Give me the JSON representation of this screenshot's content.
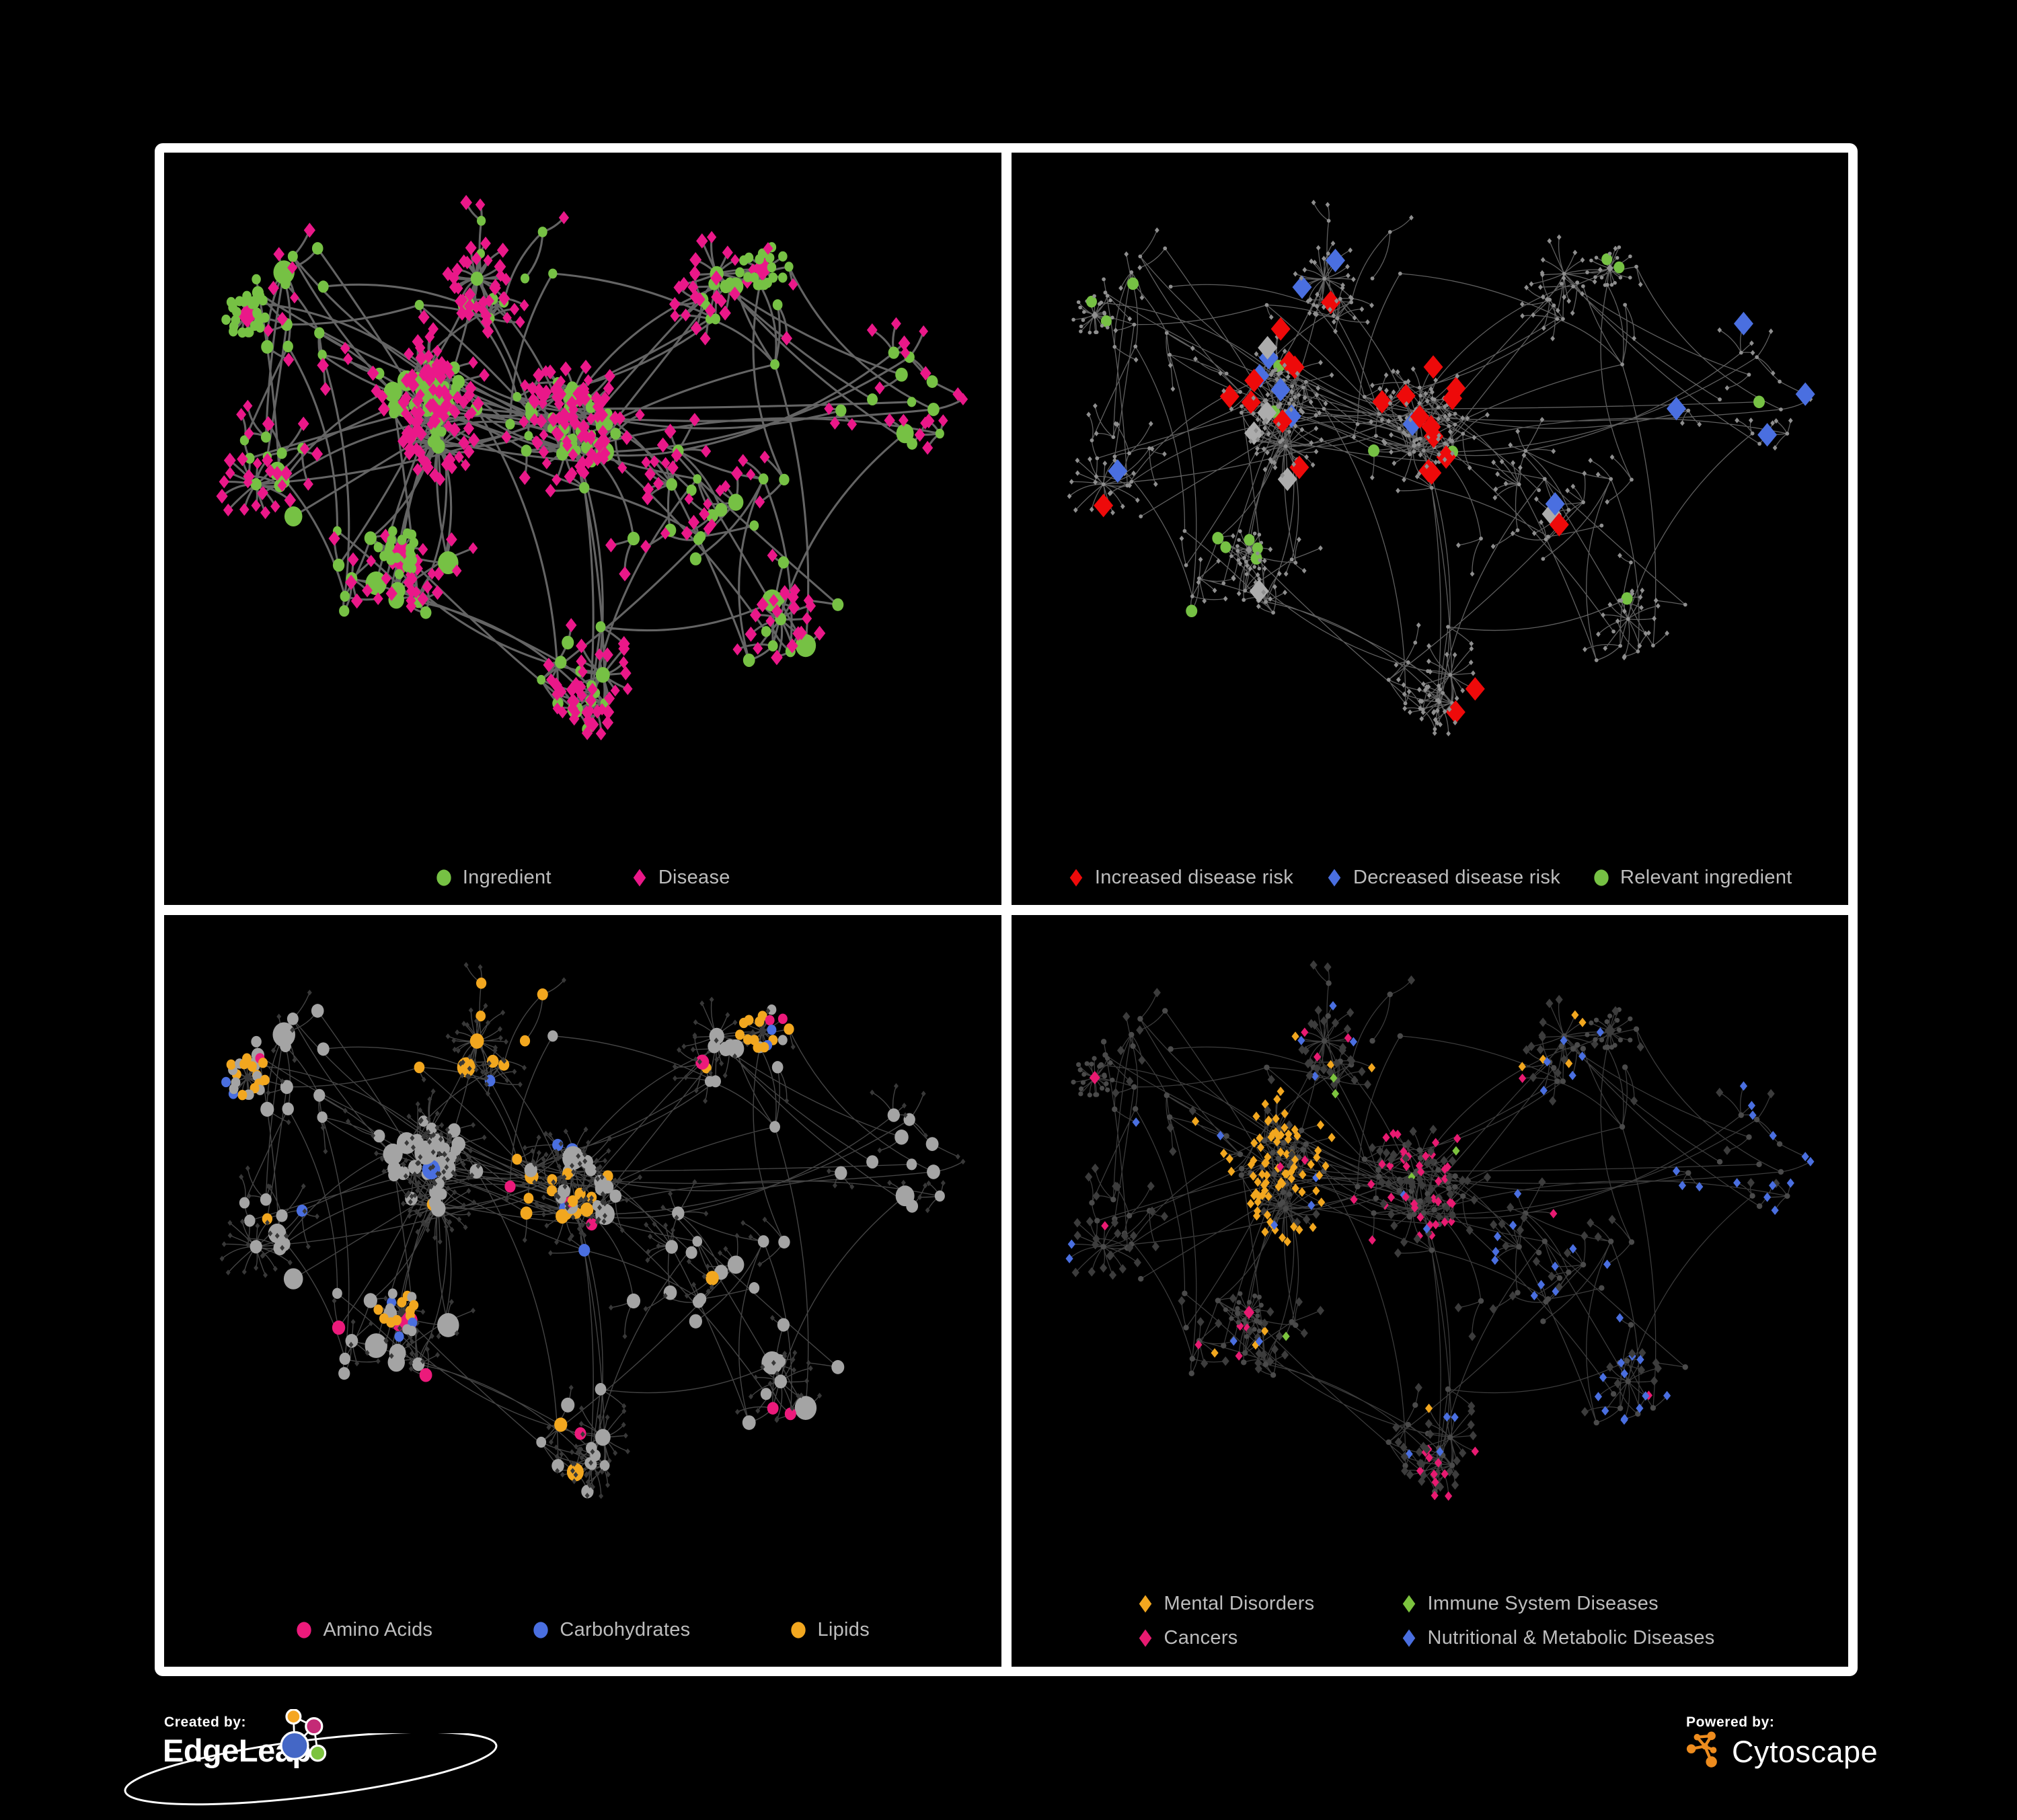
{
  "page": {
    "background": "#000000",
    "frame_color": "#FFFFFF"
  },
  "network": {
    "seed": 20177,
    "hub_count": 186,
    "extra_edges": 55
  },
  "palette": {
    "ingredient_green": "#76C144",
    "disease_magenta": "#EA1889",
    "risk_red": "#EE0A0A",
    "risk_blue": "#4A6FE0",
    "neutral_silver": "#ACACAC",
    "amino_pink": "#EC1A7B",
    "carb_blue": "#4A6FE0",
    "lipid_orange": "#F2A71F",
    "mental_orange": "#F2A71F",
    "immune_green": "#7CC33E",
    "cancer_pink": "#E81A71",
    "nutritional_blue": "#4A6FE0",
    "legend_text": "#BDBDBD"
  },
  "panels": [
    {
      "id": "ingredient-disease-network",
      "legend": [
        {
          "shape": "circle",
          "color": "#76C144",
          "label": "Ingredient"
        },
        {
          "shape": "diamond",
          "color": "#EA1889",
          "label": "Disease"
        }
      ],
      "style": {
        "edge": {
          "stroke": "#6C6C6C",
          "width": 3.1,
          "opacity": 0.92
        },
        "hub": {
          "fill": "#76C144"
        },
        "leaf": {
          "fill": "#EA1889"
        }
      }
    },
    {
      "id": "disease-risk-network",
      "legend": [
        {
          "shape": "diamond",
          "color": "#EE0A0A",
          "label": "Increased disease risk"
        },
        {
          "shape": "diamond",
          "color": "#4A6FE0",
          "label": "Decreased disease risk"
        },
        {
          "shape": "circle",
          "color": "#76C144",
          "label": "Relevant ingredient"
        }
      ],
      "style": {
        "edge": {
          "stroke": "#696969",
          "width": 1.3,
          "opacity": 0.9
        },
        "base": {
          "fill": "#8F8F8F"
        },
        "highlight_hub": {
          "fill": "#76C144"
        },
        "highlight_leaf_colors": {
          "increased": "#EE0A0A",
          "decreased": "#4A6FE0",
          "neutral": "#ACACAC"
        }
      }
    },
    {
      "id": "nutrient-class-network",
      "legend": [
        {
          "shape": "circle",
          "color": "#EC1A7B",
          "label": "Amino Acids"
        },
        {
          "shape": "circle",
          "color": "#4A6FE0",
          "label": "Carbohydrates"
        },
        {
          "shape": "circle",
          "color": "#F2A71F",
          "label": "Lipids"
        }
      ],
      "style": {
        "edge": {
          "stroke": "#ABABAB",
          "width": 1.4,
          "opacity": 0.4
        },
        "leaf": {
          "fill": "#383838"
        },
        "hub_colors": {
          "default": "#A4A4A4",
          "amino": "#EC1A7B",
          "carb": "#4A6FE0",
          "lipid": "#F2A71F"
        }
      }
    },
    {
      "id": "disease-class-network",
      "legend": [
        {
          "shape": "diamond",
          "color": "#F2A71F",
          "label": "Mental Disorders"
        },
        {
          "shape": "diamond",
          "color": "#7CC33E",
          "label": "Immune System Diseases"
        },
        {
          "shape": "diamond",
          "color": "#E81A71",
          "label": "Cancers"
        },
        {
          "shape": "diamond",
          "color": "#4A6FE0",
          "label": "Nutritional & Metabolic Diseases"
        }
      ],
      "style": {
        "edge": {
          "stroke": "#909090",
          "width": 1.25,
          "opacity": 0.42
        },
        "hub": {
          "fill": "#4A4A4A"
        },
        "leaf_colors": {
          "mental": "#F2A71F",
          "immune": "#7CC33E",
          "cancer": "#E81A71",
          "nutritional": "#4A6FE0",
          "other": "#3C3C3C"
        }
      }
    }
  ],
  "footer": {
    "created_by": {
      "label": "Created by:",
      "brand": "EdgeLeap"
    },
    "powered_by": {
      "label": "Powered by:",
      "brand": "Cytoscape"
    },
    "edgeleap_colors": {
      "orange": "#F5A623",
      "magenta": "#C42A76",
      "blue": "#4467C6",
      "green": "#7CC33E"
    },
    "cytoscape_color": "#EE8C1E"
  }
}
